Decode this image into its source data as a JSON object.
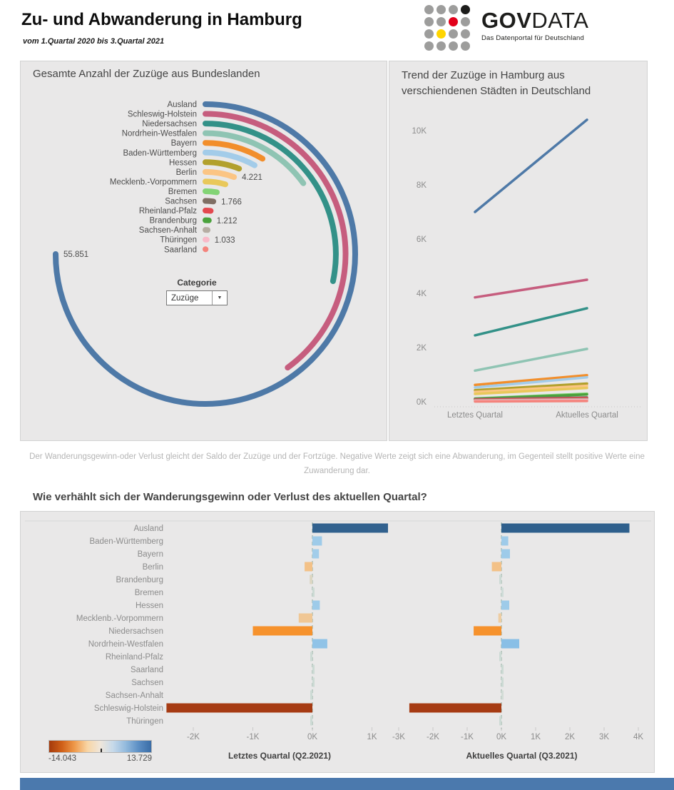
{
  "header": {
    "title": "Zu- und Abwanderung in Hamburg",
    "subtitle": "vom 1.Quartal 2020 bis 3.Quartal 2021",
    "logo": {
      "text_bold": "GOV",
      "text_light": "DATA",
      "tagline": "Das Datenportal für Deutschland",
      "dot_colors": [
        "#9d9d9c",
        "#9d9d9c",
        "#9d9d9c",
        "#1d1d1b",
        "#9d9d9c",
        "#9d9d9c",
        "#e2001a",
        "#9d9d9c",
        "#9d9d9c",
        "#ffd500",
        "#9d9d9c",
        "#9d9d9c",
        "#9d9d9c",
        "#9d9d9c",
        "#9d9d9c",
        "#9d9d9c"
      ]
    }
  },
  "left_panel": {
    "title": "Gesamte Anzahl der Zuzüge aus Bundeslanden",
    "filter": {
      "label": "Categorie",
      "value": "Zuzüge"
    }
  },
  "right_panel": {
    "title": "Trend der Zuzüge in Hamburg aus verschiendenen Städten in Deutschland"
  },
  "caption": "Der Wanderungsgewinn-oder Verlust gleicht der Saldo der Zuzüge und der Fortzüge. Negative Werte zeigt sich eine Abwanderung, im Gegenteil stellt positive Werte eine Zuwanderung dar.",
  "bottom_panel": {
    "title": "Wie verhählt sich der Wanderungsgewinn oder Verlust des aktuellen Quartal?"
  },
  "chart_data": [
    {
      "type": "bar",
      "subtype": "radial-bar",
      "title": "Gesamte Anzahl der Zuzüge aus Bundeslanden",
      "max_angle_deg": 270,
      "angle_max_value": 55851,
      "categories": [
        "Ausland",
        "Schleswig-Holstein",
        "Niedersachsen",
        "Nordrhein-Westfalen",
        "Bayern",
        "Baden-Württemberg",
        "Hessen",
        "Berlin",
        "Mecklenb.-Vorpommern",
        "Bremen",
        "Sachsen",
        "Rheinland-Pfalz",
        "Brandenburg",
        "Sachsen-Anhalt",
        "Thüringen",
        "Saarland"
      ],
      "values": [
        55851,
        29800,
        21100,
        11200,
        6400,
        6000,
        4450,
        4221,
        3310,
        2170,
        1766,
        1450,
        1212,
        1075,
        1033,
        500
      ],
      "colors": [
        "#4e79a7",
        "#c65d7e",
        "#339188",
        "#8fc4b3",
        "#f28e2b",
        "#a3cce9",
        "#b2a02c",
        "#fbc584",
        "#e9c85a",
        "#83d475",
        "#7f6f64",
        "#e3494f",
        "#4aa23c",
        "#b6ada3",
        "#f9b9c8",
        "#f4837c"
      ],
      "value_labels": {
        "Ausland": "55.851",
        "Berlin": "4.221",
        "Sachsen": "1.766",
        "Brandenburg": "1.212",
        "Thüringen": "1.033"
      }
    },
    {
      "type": "line",
      "title": "Trend der Zuzüge in Hamburg aus verschiendenen Städten in Deutschland",
      "x_categories": [
        "Letztes Quartal",
        "Aktuelles Quartal"
      ],
      "y_ticks": [
        0,
        2000,
        4000,
        6000,
        8000,
        10000
      ],
      "ylim": [
        0,
        10500
      ],
      "series": [
        {
          "name": "Ausland",
          "color": "#4e79a7",
          "values": [
            7000,
            10400
          ]
        },
        {
          "name": "Schleswig-Holstein",
          "color": "#c65d7e",
          "values": [
            3850,
            4500
          ]
        },
        {
          "name": "Niedersachsen",
          "color": "#339188",
          "values": [
            2450,
            3450
          ]
        },
        {
          "name": "Nordrhein-Westfalen",
          "color": "#8fc4b3",
          "values": [
            1150,
            1950
          ]
        },
        {
          "name": "Bayern",
          "color": "#f28e2b",
          "values": [
            620,
            980
          ]
        },
        {
          "name": "Baden-Württemberg",
          "color": "#a3cce9",
          "values": [
            530,
            900
          ]
        },
        {
          "name": "Hessen",
          "color": "#b2a02c",
          "values": [
            430,
            670
          ]
        },
        {
          "name": "Berlin",
          "color": "#fbc584",
          "values": [
            360,
            590
          ]
        },
        {
          "name": "Mecklenb.-Vorpommern",
          "color": "#e9c85a",
          "values": [
            290,
            510
          ]
        },
        {
          "name": "Bremen",
          "color": "#83d475",
          "values": [
            120,
            300
          ]
        },
        {
          "name": "Brandenburg",
          "color": "#4aa23c",
          "values": [
            110,
            270
          ]
        },
        {
          "name": "Sachsen",
          "color": "#7f6f64",
          "values": [
            100,
            160
          ]
        },
        {
          "name": "Rheinland-Pfalz",
          "color": "#e3494f",
          "values": [
            70,
            130
          ]
        },
        {
          "name": "Sachsen-Anhalt",
          "color": "#b6ada3",
          "values": [
            50,
            90
          ]
        },
        {
          "name": "Thüringen",
          "color": "#f9b9c8",
          "values": [
            30,
            60
          ]
        },
        {
          "name": "Saarland",
          "color": "#f4837c",
          "values": [
            10,
            30
          ]
        }
      ]
    },
    {
      "type": "bar",
      "orientation": "horizontal-diverging",
      "title": "Wie verhählt sich der Wanderungsgewinn oder Verlust des aktuellen Quartal?",
      "categories": [
        "Ausland",
        "Baden-Württemberg",
        "Bayern",
        "Berlin",
        "Brandenburg",
        "Bremen",
        "Hessen",
        "Mecklenb.-Vorpommern",
        "Niedersachsen",
        "Nordrhein-Westfalen",
        "Rheinland-Pfalz",
        "Saarland",
        "Sachsen",
        "Sachsen-Anhalt",
        "Schleswig-Holstein",
        "Thüringen"
      ],
      "series": [
        {
          "name": "Letztes  Quartal (Q2.2021)",
          "ticks": [
            -2000,
            -1000,
            0,
            1000
          ],
          "values": [
            1270,
            160,
            110,
            -130,
            -45,
            25,
            125,
            -230,
            -1000,
            250,
            -25,
            8,
            12,
            -25,
            -2450,
            -18
          ],
          "colors": [
            "#31618e",
            "#9ecbe9",
            "#a2cdea",
            "#f3c187",
            "#dcd6c2",
            "#ccdad4",
            "#9ecbe9",
            "#f0c795",
            "#f6922d",
            "#90c3e7",
            "#ccdad4",
            "#ccdad4",
            "#ccdad4",
            "#ccdad4",
            "#a63b13",
            "#ccdad4"
          ]
        },
        {
          "name": "Aktuelles Quartal (Q3.2021)",
          "ticks": [
            -3000,
            -2000,
            -1000,
            0,
            1000,
            2000,
            3000,
            4000
          ],
          "values": [
            3740,
            200,
            250,
            -280,
            -35,
            60,
            230,
            -90,
            -810,
            520,
            -45,
            8,
            12,
            45,
            -2690,
            -60
          ],
          "colors": [
            "#2e5f8c",
            "#9ecbe9",
            "#9ecbe9",
            "#f3c187",
            "#ccdad4",
            "#cfdcd8",
            "#9ecbe9",
            "#eecda2",
            "#f6922d",
            "#89bfe6",
            "#ccdad4",
            "#ccdad4",
            "#ccdad4",
            "#d2dcd6",
            "#a63b13",
            "#ccdad4"
          ]
        }
      ],
      "color_legend": {
        "min_label": "-14.043",
        "max_label": "13.729",
        "gradient": [
          "#a43a0c",
          "#d06018",
          "#ef9a4b",
          "#f8d5a5",
          "#efe6da",
          "#c6d9ea",
          "#93badd",
          "#5c8fc4",
          "#3a6ca6"
        ]
      }
    }
  ]
}
